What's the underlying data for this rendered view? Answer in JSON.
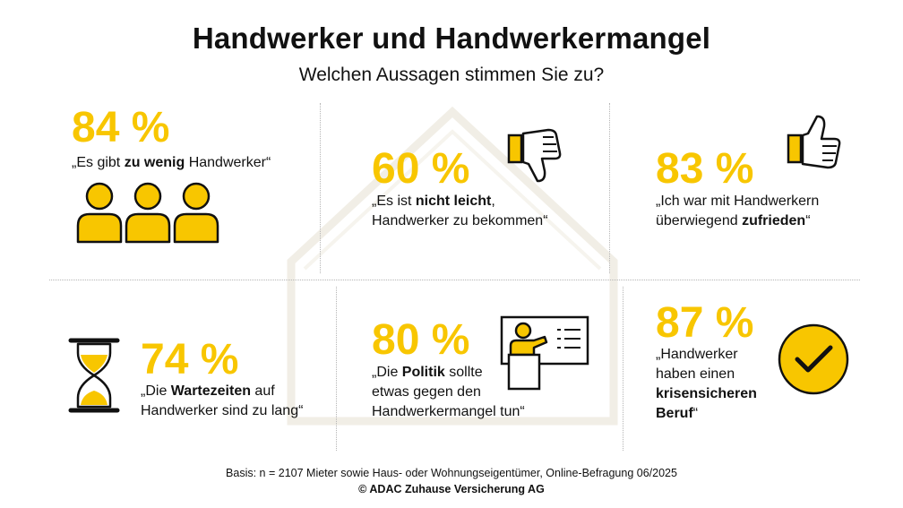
{
  "title": "Handwerker und Handwerkermangel",
  "subtitle": "Welchen Aussagen stimmen Sie zu?",
  "colors": {
    "accent": "#f8c600",
    "text": "#111111",
    "divider": "#b5b5b5"
  },
  "chart_data": {
    "type": "table",
    "items": [
      {
        "value": 84,
        "value_label": "84 %",
        "parts": [
          "„Es gibt ",
          "zu wenig",
          " Handwerker“"
        ],
        "icon": "people-group-icon"
      },
      {
        "value": 60,
        "value_label": "60 %",
        "parts": [
          "„Es ist ",
          "nicht leicht",
          ",",
          "Handwerker zu bekommen“"
        ],
        "icon": "thumbs-down-icon"
      },
      {
        "value": 83,
        "value_label": "83 %",
        "parts": [
          "„Ich war mit Handwerkern",
          "überwiegend ",
          "zufrieden",
          "“"
        ],
        "icon": "thumbs-up-icon"
      },
      {
        "value": 74,
        "value_label": "74 %",
        "parts": [
          "„Die ",
          "Wartezeiten",
          " auf",
          "Handwerker sind zu lang“"
        ],
        "icon": "hourglass-icon"
      },
      {
        "value": 80,
        "value_label": "80 %",
        "parts": [
          "„Die ",
          "Politik",
          " sollte",
          "etwas gegen den",
          "Handwerkermangel tun“"
        ],
        "icon": "presenter-lectern-icon"
      },
      {
        "value": 87,
        "value_label": "87 %",
        "parts": [
          "„Handwerker",
          "haben einen",
          "krisensicheren",
          "Beruf",
          "“"
        ],
        "icon": "checkmark-circle-icon"
      }
    ]
  },
  "footer": {
    "basis": "Basis: n = 2107 Mieter sowie Haus- oder Wohnungseigentümer, Online-Befragung 06/2025",
    "copyright": "© ADAC Zuhause Versicherung AG"
  }
}
